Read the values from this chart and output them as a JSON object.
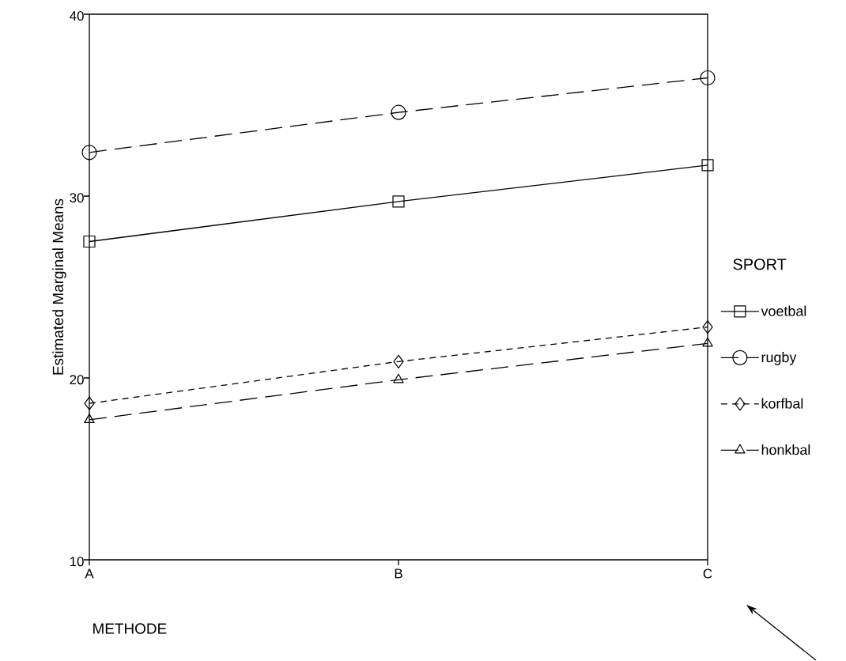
{
  "chart_data": {
    "type": "line",
    "xlabel": "METHODE",
    "ylabel": "Estimated Marginal Means",
    "legend_title": "SPORT",
    "categories": [
      "A",
      "B",
      "C"
    ],
    "series": [
      {
        "name": "voetbal",
        "color": "#000000",
        "marker": "square",
        "line_style": "solid",
        "values": [
          27.5,
          29.7,
          31.7
        ]
      },
      {
        "name": "rugby",
        "color": "#000000",
        "marker": "circle",
        "line_style": "dashed",
        "values": [
          32.4,
          34.6,
          36.5
        ]
      },
      {
        "name": "korfbal",
        "color": "#000000",
        "marker": "diamond",
        "line_style": "dotted",
        "values": [
          18.6,
          20.9,
          22.8
        ]
      },
      {
        "name": "honkbal",
        "color": "#000000",
        "marker": "triangle",
        "line_style": "dashed",
        "values": [
          17.7,
          19.9,
          21.9
        ]
      }
    ],
    "ylim": [
      10,
      40
    ],
    "yticks": [
      10,
      20,
      30,
      40
    ],
    "grid": false,
    "legend": "right"
  }
}
